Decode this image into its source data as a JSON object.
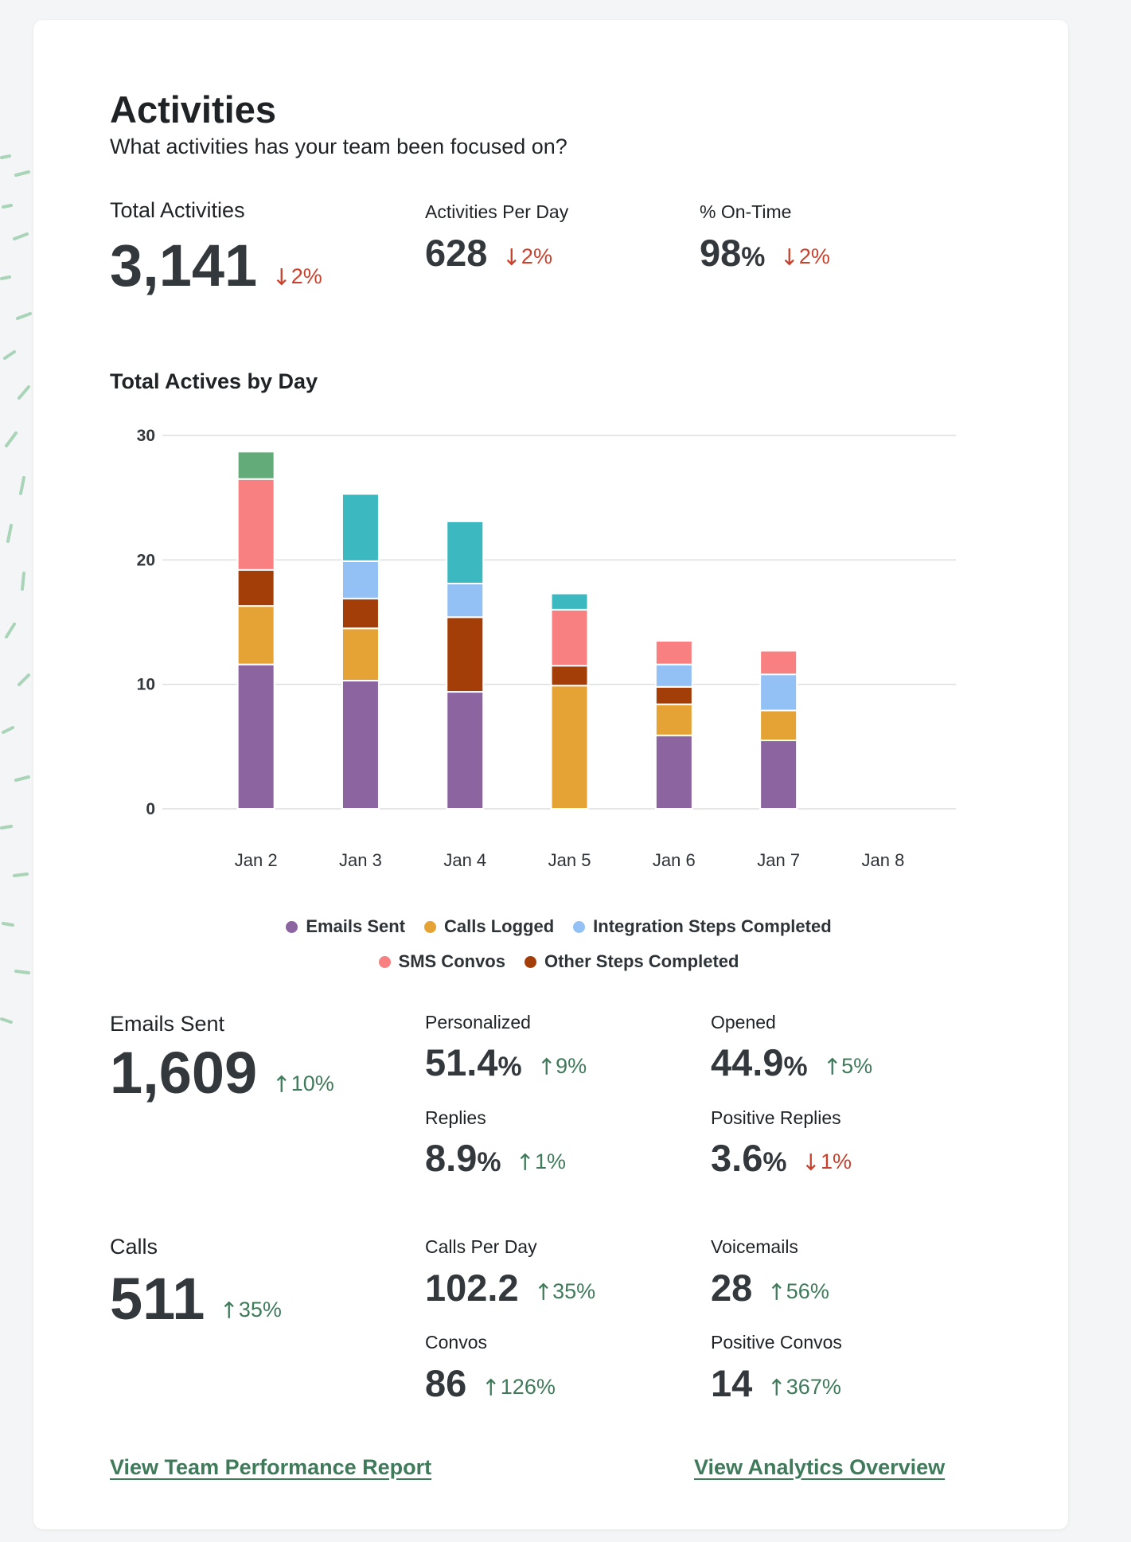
{
  "header": {
    "title": "Activities",
    "subtitle": "What activities has your team been focused on?"
  },
  "summary": [
    {
      "label": "Total Activities",
      "value": "3,141",
      "delta": "2%",
      "direction": "down"
    },
    {
      "label": "Activities Per Day",
      "value": "628",
      "delta": "2%",
      "direction": "down"
    },
    {
      "label": "% On-Time",
      "value": "98",
      "unit": "%",
      "delta": "2%",
      "direction": "down"
    }
  ],
  "chart_data": {
    "type": "stacked-bar",
    "title": "Total Actives by Day",
    "categories": [
      "Jan 2",
      "Jan 3",
      "Jan 4",
      "Jan 5",
      "Jan 6",
      "Jan 7",
      "Jan 8"
    ],
    "series": [
      {
        "name": "Emails Sent",
        "color": "#8b64a0",
        "values": [
          11.6,
          10.3,
          9.4,
          0,
          5.9,
          5.5,
          0
        ]
      },
      {
        "name": "Calls Logged",
        "color": "#e5a335",
        "values": [
          4.7,
          4.2,
          0,
          9.9,
          2.5,
          2.4,
          0
        ]
      },
      {
        "name": "Other Steps Completed",
        "color": "#a33e08",
        "values": [
          2.9,
          2.4,
          6.0,
          1.6,
          1.4,
          0,
          0
        ]
      },
      {
        "name": "Integration Steps Completed",
        "color": "#93c0f5",
        "values": [
          0,
          3.0,
          2.7,
          0,
          1.8,
          2.9,
          0
        ]
      },
      {
        "name": "SMS Convos",
        "color": "#f88080",
        "values": [
          7.3,
          0,
          0,
          4.5,
          1.9,
          1.9,
          0
        ]
      },
      {
        "color": "#3bb8c0",
        "values": [
          0,
          5.4,
          5.0,
          1.3,
          0,
          0,
          0
        ]
      },
      {
        "color": "#64ab7a",
        "values": [
          2.2,
          0,
          0,
          0,
          0,
          0,
          0
        ]
      }
    ],
    "legend_order": [
      0,
      1,
      3,
      4,
      2
    ],
    "ylim": [
      0,
      30
    ],
    "yticks": [
      0,
      10,
      20,
      30
    ],
    "grid": true
  },
  "emails": {
    "label": "Emails Sent",
    "value": "1,609",
    "delta": "10%",
    "direction": "up",
    "stats": [
      {
        "label": "Personalized",
        "value": "51.4",
        "unit": "%",
        "delta": "9%",
        "direction": "up"
      },
      {
        "label": "Opened",
        "value": "44.9",
        "unit": "%",
        "delta": "5%",
        "direction": "up"
      },
      {
        "label": "Replies",
        "value": "8.9",
        "unit": "%",
        "delta": "1%",
        "direction": "up"
      },
      {
        "label": "Positive Replies",
        "value": "3.6",
        "unit": "%",
        "delta": "1%",
        "direction": "down"
      }
    ]
  },
  "calls": {
    "label": "Calls",
    "value": "511",
    "delta": "35%",
    "direction": "up",
    "stats": [
      {
        "label": "Calls Per Day",
        "value": "102.2",
        "delta": "35%",
        "direction": "up"
      },
      {
        "label": "Voicemails",
        "value": "28",
        "delta": "56%",
        "direction": "up"
      },
      {
        "label": "Convos",
        "value": "86",
        "delta": "126%",
        "direction": "up"
      },
      {
        "label": "Positive Convos",
        "value": "14",
        "delta": "367%",
        "direction": "up"
      }
    ]
  },
  "links": [
    "View Team Performance Report",
    "View Analytics Overview"
  ]
}
